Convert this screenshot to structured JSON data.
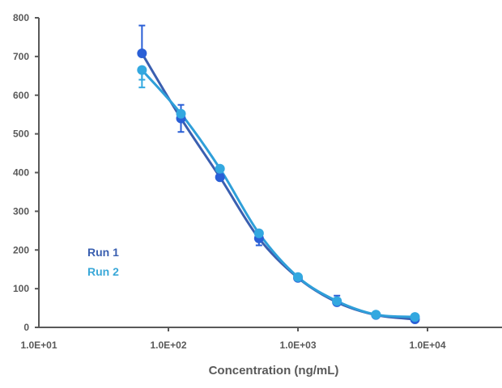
{
  "chart_data": {
    "type": "line",
    "title": "",
    "xlabel": "Concentration (ng/mL)",
    "ylabel": "",
    "xscale": "log",
    "xlim": [
      10,
      10000
    ],
    "ylim": [
      0,
      800
    ],
    "grid": false,
    "x_ticks": [
      10,
      100,
      1000,
      10000
    ],
    "x_tick_labels": [
      "1.0E+01",
      "1.0E+02",
      "1.0E+03",
      "1.0E+04"
    ],
    "y_ticks": [
      0,
      100,
      200,
      300,
      400,
      500,
      600,
      700,
      800
    ],
    "y_tick_labels": [
      "0",
      "100",
      "200",
      "300",
      "400",
      "500",
      "600",
      "700",
      "800"
    ],
    "legend": {
      "placement": "center-left",
      "entries": [
        "Run 1",
        "Run 2"
      ]
    },
    "series": [
      {
        "name": "Run 1",
        "color": "#2a5fd6",
        "line_color": "#3a5fb0",
        "x": [
          62.5,
          125,
          250,
          500,
          1000,
          2000,
          4000,
          8000
        ],
        "y": [
          708,
          540,
          388,
          230,
          128,
          65,
          32,
          21
        ],
        "error_low": [
          null,
          505,
          null,
          212,
          null,
          null,
          null,
          null
        ],
        "error_high": [
          780,
          575,
          null,
          null,
          null,
          82,
          null,
          null
        ]
      },
      {
        "name": "Run 2",
        "color": "#33a8e0",
        "line_color": "#2f9fd9",
        "x": [
          62.5,
          125,
          250,
          500,
          1000,
          2000,
          4000,
          8000
        ],
        "y": [
          665,
          552,
          410,
          243,
          130,
          68,
          33,
          27
        ],
        "error_low": [
          620,
          null,
          null,
          null,
          null,
          null,
          null,
          null
        ],
        "error_high": [
          640,
          null,
          null,
          null,
          null,
          null,
          null,
          null
        ]
      }
    ]
  }
}
